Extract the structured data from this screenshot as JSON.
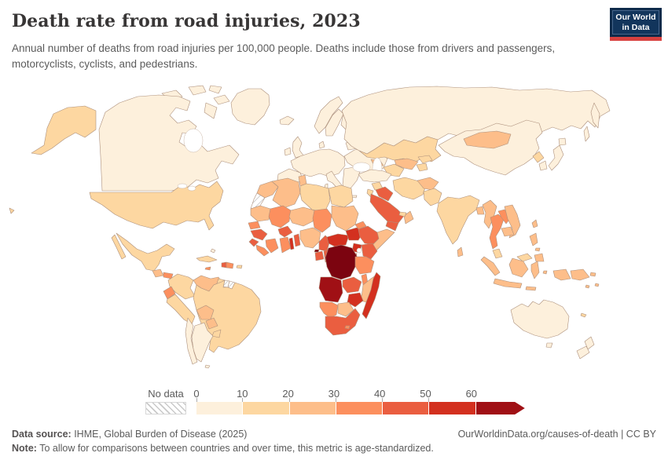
{
  "header": {
    "title": "Death rate from road injuries, 2023",
    "subtitle": "Annual number of deaths from road injuries per 100,000 people. Deaths include those from drivers and passengers, motorcyclists, cyclists, and pedestrians.",
    "logo": {
      "line1": "Our World",
      "line2": "in Data",
      "navy": "#12355c",
      "red": "#d8413f"
    }
  },
  "chart_data": {
    "type": "choropleth-map",
    "title": "Death rate from road injuries, 2023",
    "unit": "deaths per 100,000 people",
    "year": "2023",
    "legend": {
      "no_data_label": "No data",
      "tick_labels": [
        "0",
        "10",
        "20",
        "30",
        "40",
        "50",
        "60"
      ],
      "bins": [
        {
          "range": "0-10",
          "color": "#fdf0dc"
        },
        {
          "range": "10-20",
          "color": "#fdd7a1"
        },
        {
          "range": "20-30",
          "color": "#fdbe8a"
        },
        {
          "range": "30-40",
          "color": "#fc8f5e"
        },
        {
          "range": "40-50",
          "color": "#ea5e40"
        },
        {
          "range": "50-60",
          "color": "#d3301f"
        },
        {
          "range": "60+",
          "color": "#a01015"
        }
      ]
    },
    "palette": {
      "b0": "#fdf0dc",
      "b1": "#fdd7a1",
      "b2": "#fdbe8a",
      "b3": "#fc8f5e",
      "b4": "#ea5e40",
      "b5": "#d3301f",
      "b6": "#a01015",
      "b7": "#7c0410"
    },
    "regions": {
      "canada": "b0",
      "greenland": "b0",
      "arctic-islands": "b0",
      "alaska": "b1",
      "usa": "b1",
      "hawaii": "b1",
      "mexico": "b1",
      "baja": "b1",
      "guatemala": "b2",
      "honduras": "b3",
      "nicaragua": "b2",
      "costa-rica": "b1",
      "panama": "b2",
      "cuba": "b1",
      "jamaica": "b3",
      "haiti": "b4",
      "dominican-republic": "b3",
      "puerto-rico": "b1",
      "bahamas": "b0",
      "colombia": "b1",
      "venezuela": "b2",
      "guyana": "b1",
      "suriname": "nd",
      "french-guiana": "nd",
      "ecuador": "b3",
      "peru": "b1",
      "brazil": "b1",
      "bolivia": "b2",
      "paraguay": "b2",
      "uruguay": "b1",
      "argentina": "b0",
      "chile": "b0",
      "falklands": "b0",
      "iceland": "b0",
      "ireland": "b0",
      "uk": "b0",
      "norway": "b0",
      "sweden": "b0",
      "finland": "b0",
      "denmark": "b0",
      "europe-west": "b0",
      "iberia": "b0",
      "italy": "b0",
      "sicily": "b0",
      "sardinia": "b0",
      "balkans": "b0",
      "crete": "b0",
      "europe-east": "b0",
      "baltics": "b0",
      "russia": "b0",
      "kamchatka": "b0",
      "sakhalin": "b0",
      "kazakhstan": "b1",
      "turkmenistan": "b1",
      "uzbekistan": "b2",
      "kyrgyzstan": "b1",
      "tajikistan": "b1",
      "caucasus": "b2",
      "turkey": "b0",
      "syria": "b1",
      "jordan": "b1",
      "iraq": "b4",
      "iran": "b1",
      "afghanistan": "b2",
      "pakistan": "b1",
      "saudi-arabia": "b4",
      "yemen": "b4",
      "oman": "b2",
      "uae": "b1",
      "morocco": "b2",
      "western-sahara": "nd",
      "algeria": "b2",
      "tunisia": "b2",
      "libya": "b1",
      "egypt": "b1",
      "mauritania": "b2",
      "mali": "b3",
      "niger": "b2",
      "chad": "b3",
      "sudan": "b2",
      "eritrea": "b3",
      "senegal": "b3",
      "guinea": "b4",
      "sierra-leone": "b4",
      "liberia": "b3",
      "ivory-coast": "b3",
      "burkina-faso": "b4",
      "ghana": "b3",
      "togo": "b5",
      "benin": "b4",
      "nigeria": "b2",
      "cameroon": "b4",
      "central-african-republic": "b5",
      "south-sudan": "b5",
      "ethiopia": "b4",
      "somalia": "b2",
      "kenya": "b4",
      "uganda": "b5",
      "rwanda": "b5",
      "gabon": "b4",
      "equatorial-guinea": "b7",
      "congo": "b4",
      "drc": "b7",
      "angola": "b6",
      "zambia": "b4",
      "tanzania": "b3",
      "malawi": "b3",
      "mozambique": "b2",
      "zimbabwe": "b5",
      "botswana": "b2",
      "namibia": "b3",
      "south-africa": "b4",
      "lesotho": "b3",
      "madagascar": "b5",
      "china": "b0",
      "mongolia": "b2",
      "north-korea": "b1",
      "south-korea": "b0",
      "japan": "b0",
      "hokkaido": "b0",
      "taiwan": "b2",
      "india": "b1",
      "bangladesh": "b2",
      "sri-lanka": "b2",
      "myanmar": "b2",
      "thailand": "b3",
      "laos": "b3",
      "vietnam": "b2",
      "cambodia": "b2",
      "malaysia": "b1",
      "malaysia-borneo": "b1",
      "indonesia": "b2",
      "papua-new-guinea": "b2",
      "philippines": "b2",
      "australia": "b0",
      "tasmania": "b0",
      "new-zealand": "b0",
      "fiji": "b2",
      "solomon-islands": "b2",
      "new-caledonia": "b1"
    }
  },
  "footer": {
    "datasource_label": "Data source:",
    "datasource_text": " IHME, Global Burden of Disease (2025)",
    "rights": "OurWorldinData.org/causes-of-death | CC BY",
    "note_label": "Note:",
    "note_text": " To allow for comparisons between countries and over time, this metric is age-standardized."
  }
}
